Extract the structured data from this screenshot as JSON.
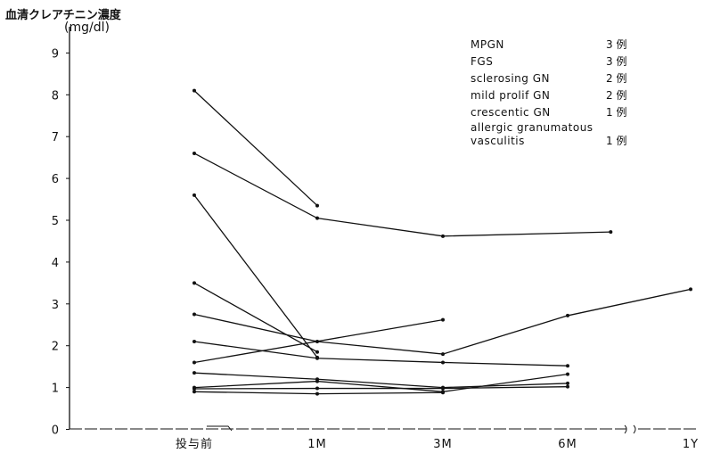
{
  "chart_data": {
    "type": "line",
    "title": "",
    "ylabel": "血清クレアチニン濃度",
    "yunit": "(mg/dl)",
    "xlabel": "",
    "categories": [
      "投与前",
      "1M",
      "3M",
      "6M",
      "1Y"
    ],
    "ylim": [
      0,
      9.5
    ],
    "yticks": [
      0,
      1,
      2,
      3,
      4,
      5,
      6,
      7,
      8,
      9
    ],
    "grid": false,
    "axis_break": "between 6M and 1Y",
    "legend_position": "top-right",
    "series": [
      {
        "values": [
          8.1,
          5.35,
          null,
          null,
          null
        ]
      },
      {
        "values": [
          6.6,
          5.05,
          4.62,
          null,
          null
        ],
        "extra": {
          "x": 3.35,
          "y": 4.72
        }
      },
      {
        "values": [
          5.6,
          1.72,
          null,
          null,
          null
        ]
      },
      {
        "values": [
          3.5,
          1.85,
          null,
          null,
          null
        ]
      },
      {
        "values": [
          2.75,
          2.1,
          1.8,
          2.72,
          3.35
        ]
      },
      {
        "values": [
          2.1,
          1.7,
          1.6,
          1.52,
          null
        ]
      },
      {
        "values": [
          1.6,
          null,
          2.62,
          null,
          null
        ]
      },
      {
        "values": [
          1.35,
          1.2,
          1.0,
          1.1,
          null
        ]
      },
      {
        "values": [
          1.0,
          1.15,
          0.9,
          1.32,
          null
        ]
      },
      {
        "values": [
          0.97,
          0.98,
          0.98,
          1.02,
          null
        ]
      },
      {
        "values": [
          0.9,
          0.85,
          0.88,
          null,
          null
        ]
      }
    ],
    "legend_items": [
      {
        "label": "MPGN",
        "count": "3 例"
      },
      {
        "label": "FGS",
        "count": "3 例"
      },
      {
        "label": "sclerosing GN",
        "count": "2 例"
      },
      {
        "label": "mild prolif GN",
        "count": "2 例"
      },
      {
        "label": "crescentic GN",
        "count": "1 例"
      },
      {
        "label": "allergic granumatous vasculitis",
        "count": "1 例"
      }
    ],
    "style": {
      "line_color": "#111111"
    }
  }
}
